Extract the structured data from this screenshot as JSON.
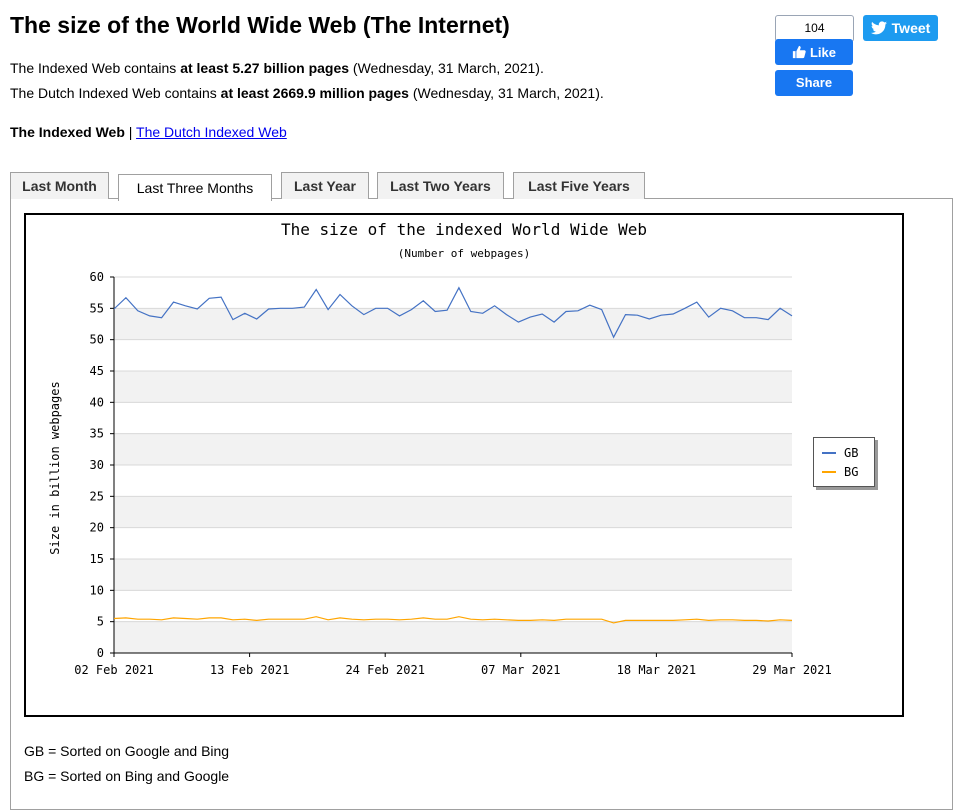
{
  "page": {
    "title": "The size of the World Wide Web (The Internet)",
    "stat1": {
      "prefix": "The Indexed Web contains ",
      "bold": "at least 5.27 billion pages",
      "suffix": " (Wednesday, 31 March, 2021)."
    },
    "stat2": {
      "prefix": "The Dutch Indexed Web contains ",
      "bold": "at least 2669.9 million pages",
      "suffix": " (Wednesday, 31 March, 2021)."
    },
    "links": {
      "current": "The Indexed Web",
      "separator": " | ",
      "other": "The Dutch Indexed Web"
    }
  },
  "social": {
    "like_count": "104",
    "like_label": "Like",
    "share_label": "Share",
    "tweet_label": "Tweet"
  },
  "tabs": [
    {
      "label": "Last Month",
      "active": false
    },
    {
      "label": "Last Three Months",
      "active": true
    },
    {
      "label": "Last Year",
      "active": false
    },
    {
      "label": "Last Two Years",
      "active": false
    },
    {
      "label": "Last Five Years",
      "active": false
    }
  ],
  "notes": {
    "gb": "GB = Sorted on Google and Bing",
    "bg": "BG = Sorted on Bing and Google"
  },
  "colors": {
    "gb": "#4472c4",
    "bg": "#ffa500",
    "facebook": "#1877f2",
    "twitter": "#1d9bf0"
  },
  "chart_data": {
    "type": "line",
    "title": "The size of the indexed World Wide Web",
    "subtitle": "(Number of webpages)",
    "ylabel": "Size in billion webpages",
    "xlabel": "",
    "ylim": [
      0,
      60
    ],
    "yticks": [
      0,
      5,
      10,
      15,
      20,
      25,
      30,
      35,
      40,
      45,
      50,
      55,
      60
    ],
    "xtick_labels": [
      "02 Feb 2021",
      "13 Feb 2021",
      "24 Feb 2021",
      "07 Mar 2021",
      "18 Mar 2021",
      "29 Mar 2021"
    ],
    "x_start": "01 Feb 2021",
    "x_end": "31 Mar 2021",
    "grid": true,
    "legend_position": "right",
    "series": [
      {
        "name": "GB",
        "values": [
          54.9,
          56.7,
          54.6,
          53.8,
          53.5,
          56.0,
          55.4,
          54.9,
          56.6,
          56.8,
          53.2,
          54.2,
          53.3,
          54.9,
          55.0,
          55.0,
          55.2,
          58.0,
          54.8,
          57.2,
          55.4,
          54.0,
          55.0,
          55.0,
          53.8,
          54.8,
          56.2,
          54.5,
          54.7,
          58.3,
          54.5,
          54.2,
          55.4,
          54.0,
          52.8,
          53.6,
          54.1,
          52.8,
          54.5,
          54.6,
          55.5,
          54.8,
          50.4,
          54.0,
          53.9,
          53.3,
          53.9,
          54.1,
          55.0,
          56.0,
          53.6,
          55.0,
          54.6,
          53.5,
          53.5,
          53.2,
          55.0,
          53.8
        ]
      },
      {
        "name": "BG",
        "values": [
          5.5,
          5.6,
          5.4,
          5.4,
          5.3,
          5.6,
          5.5,
          5.4,
          5.6,
          5.6,
          5.3,
          5.4,
          5.2,
          5.4,
          5.4,
          5.4,
          5.4,
          5.8,
          5.3,
          5.6,
          5.4,
          5.3,
          5.4,
          5.4,
          5.3,
          5.4,
          5.6,
          5.4,
          5.4,
          5.8,
          5.4,
          5.3,
          5.4,
          5.3,
          5.2,
          5.2,
          5.3,
          5.2,
          5.4,
          5.4,
          5.4,
          5.4,
          4.8,
          5.2,
          5.2,
          5.2,
          5.2,
          5.2,
          5.3,
          5.4,
          5.2,
          5.3,
          5.3,
          5.2,
          5.2,
          5.1,
          5.3,
          5.2
        ]
      }
    ]
  }
}
